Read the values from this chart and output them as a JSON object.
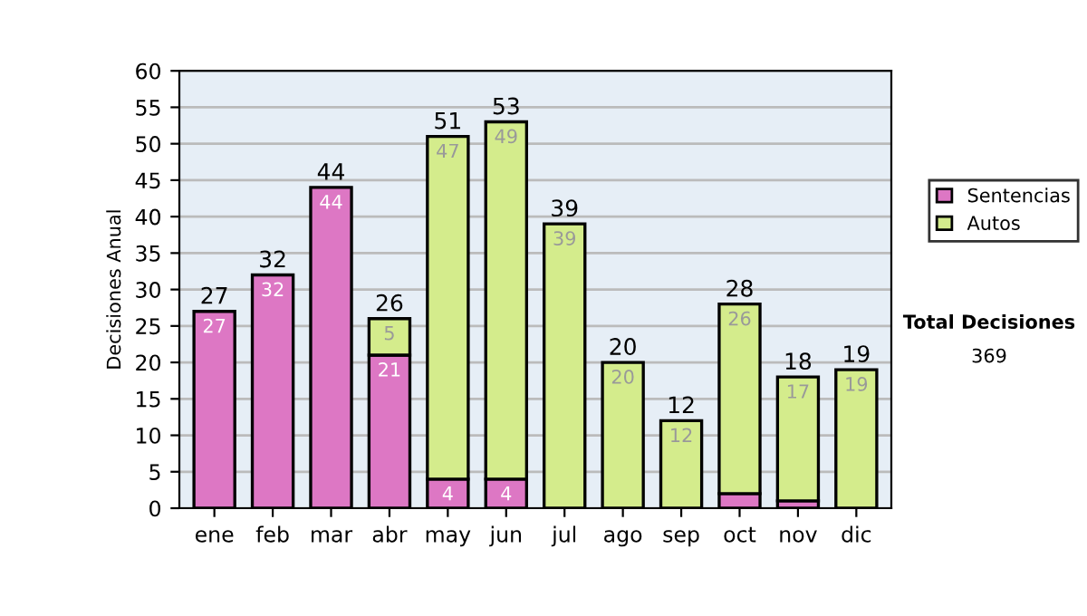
{
  "chart_data": {
    "type": "bar",
    "stacked": true,
    "ylabel": "Decisiones Anual",
    "categories": [
      "ene",
      "feb",
      "mar",
      "abr",
      "may",
      "jun",
      "jul",
      "ago",
      "sep",
      "oct",
      "nov",
      "dic"
    ],
    "series": [
      {
        "name": "Sentencias",
        "color": "#dd77c4",
        "values": [
          27,
          32,
          44,
          21,
          4,
          4,
          0,
          0,
          0,
          2,
          1,
          0
        ],
        "value_labels": [
          "27",
          "32",
          "44",
          "21",
          "4",
          "4",
          null,
          null,
          null,
          null,
          null,
          null
        ]
      },
      {
        "name": "Autos",
        "color": "#d4ec8c",
        "values": [
          0,
          0,
          0,
          5,
          47,
          49,
          39,
          20,
          12,
          26,
          17,
          19
        ],
        "value_labels": [
          null,
          null,
          null,
          "5",
          "47",
          "49",
          "39",
          "20",
          "12",
          "26",
          "17",
          "19"
        ]
      }
    ],
    "totals": [
      "27",
      "32",
      "44",
      "26",
      "51",
      "53",
      "39",
      "20",
      "12",
      "28",
      "18",
      "19"
    ],
    "ylim": [
      0,
      60
    ],
    "yticks": [
      0,
      5,
      10,
      15,
      20,
      25,
      30,
      35,
      40,
      45,
      50,
      55,
      60
    ],
    "grid": "y",
    "legend": "right",
    "annotations": [
      "Total Decisiones",
      "369"
    ]
  }
}
